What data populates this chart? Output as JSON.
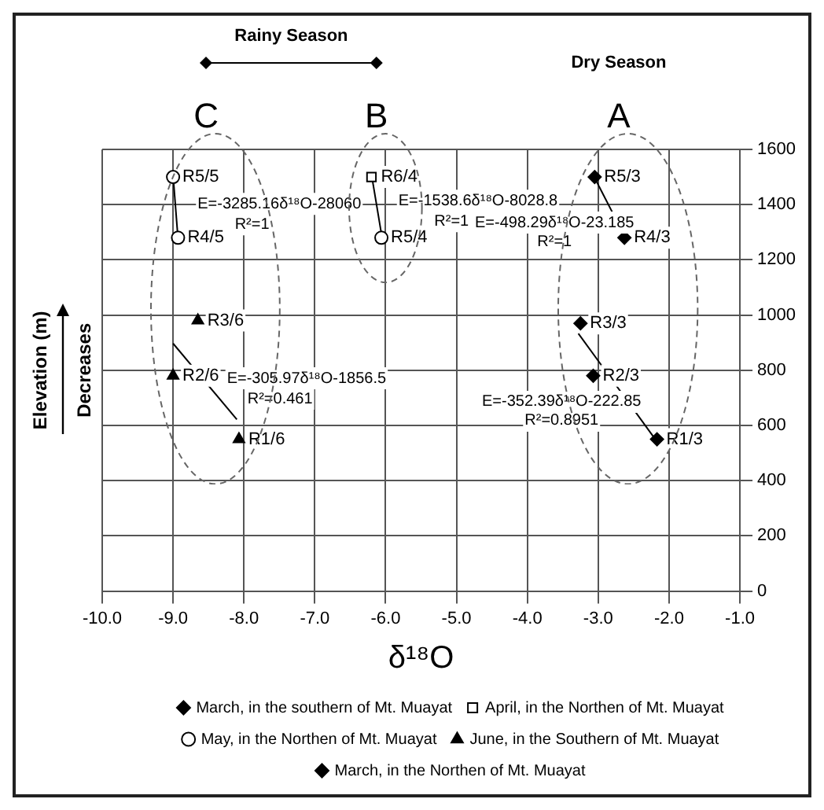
{
  "chart_data": {
    "type": "scatter",
    "xlabel": "δ¹⁸O",
    "ylabel": "Elevation (m)",
    "xlim": [
      -10,
      -1
    ],
    "xticks": [
      {
        "value": -10,
        "label": "-10.0"
      },
      {
        "value": -9,
        "label": "-9.0"
      },
      {
        "value": -8,
        "label": "-8.0"
      },
      {
        "value": -7,
        "label": "-7.0"
      },
      {
        "value": -6,
        "label": "-6.0"
      },
      {
        "value": -5,
        "label": "-5.0"
      },
      {
        "value": -4,
        "label": "-4.0"
      },
      {
        "value": -3,
        "label": "-3.0"
      },
      {
        "value": -2,
        "label": "-2.0"
      },
      {
        "value": -1,
        "label": "-1.0"
      }
    ],
    "ylim": [
      0,
      1600
    ],
    "yticks": [
      0,
      200,
      400,
      600,
      800,
      1000,
      1200,
      1400,
      1600
    ],
    "grid": true,
    "legend": "bottom",
    "series": [
      {
        "name": "March, in the southern of Mt. Muayat",
        "type": "scatter",
        "marker": "diamond",
        "color": "#000000",
        "x": [
          -2.17,
          -3.07,
          -3.25
        ],
        "values": [
          550,
          780,
          970
        ]
      },
      {
        "name": "April, in the Northen of Mt. Muayat",
        "type": "scatter",
        "marker": "square",
        "color": "#000000",
        "x": [
          -6.2
        ],
        "values": [
          1500
        ]
      },
      {
        "name": "May, in the Northen of Mt. Muayat",
        "type": "scatter",
        "marker": "circle",
        "color": "#000000",
        "x": [
          -9.0,
          -8.93,
          -6.06
        ],
        "values": [
          1500,
          1280,
          1280
        ]
      },
      {
        "name": "June, in the Southern of Mt. Muayat",
        "type": "scatter",
        "marker": "triangle",
        "color": "#000000",
        "x": [
          -8.07,
          -9.0,
          -8.65
        ],
        "values": [
          550,
          780,
          980
        ]
      },
      {
        "name": "March, in the Northen of Mt. Muayat",
        "type": "scatter",
        "marker": "diamond",
        "color": "#000000",
        "x": [
          -3.05,
          -2.63
        ],
        "values": [
          1500,
          1280
        ]
      },
      {
        "type": "line",
        "color": "#000000",
        "x": [
          -9.0,
          -8.93
        ],
        "values": [
          1506,
          1276
        ]
      },
      {
        "type": "line",
        "color": "#000000",
        "x": [
          -9.0,
          -8.1
        ],
        "values": [
          897,
          622
        ]
      },
      {
        "type": "line",
        "color": "#000000",
        "x": [
          -6.2,
          -6.06
        ],
        "values": [
          1510,
          1295
        ]
      },
      {
        "type": "line",
        "color": "#000000",
        "x": [
          -3.05,
          -2.63
        ],
        "values": [
          1497,
          1287
        ]
      },
      {
        "type": "line",
        "color": "#000000",
        "x": [
          -3.28,
          -2.2
        ],
        "values": [
          933,
          552
        ]
      }
    ],
    "annotations": [
      "Rainy Season",
      "Dry Season",
      "C",
      "B",
      "A",
      "Decreases",
      "E=-3285.16δ¹⁸O-28060",
      "R²=1",
      "E=-305.97δ¹⁸O-1856.5",
      "R²=0.461",
      "E=-1538.6δ¹⁸O-8028.8",
      "R²=1",
      "E=-498.29δ¹⁸O-23.185",
      "R²=1",
      "E=-352.39δ¹⁸O-222.85",
      "R²=0.8951",
      {
        "text": "R1/3",
        "x": -2.17,
        "y": 550
      },
      {
        "text": "R2/3",
        "x": -3.07,
        "y": 780
      },
      {
        "text": "R3/3",
        "x": -3.25,
        "y": 970
      },
      {
        "text": "R4/3",
        "x": -2.63,
        "y": 1280
      },
      {
        "text": "R5/3",
        "x": -3.05,
        "y": 1500
      },
      {
        "text": "R6/4",
        "x": -6.2,
        "y": 1500
      },
      {
        "text": "R5/4",
        "x": -6.06,
        "y": 1280
      },
      {
        "text": "R5/5",
        "x": -9.0,
        "y": 1500
      },
      {
        "text": "R4/5",
        "x": -8.93,
        "y": 1280
      },
      {
        "text": "R3/6",
        "x": -8.65,
        "y": 980
      },
      {
        "text": "R2/6",
        "x": -9.0,
        "y": 780
      },
      {
        "text": "R1/6",
        "x": -8.07,
        "y": 550
      }
    ]
  }
}
